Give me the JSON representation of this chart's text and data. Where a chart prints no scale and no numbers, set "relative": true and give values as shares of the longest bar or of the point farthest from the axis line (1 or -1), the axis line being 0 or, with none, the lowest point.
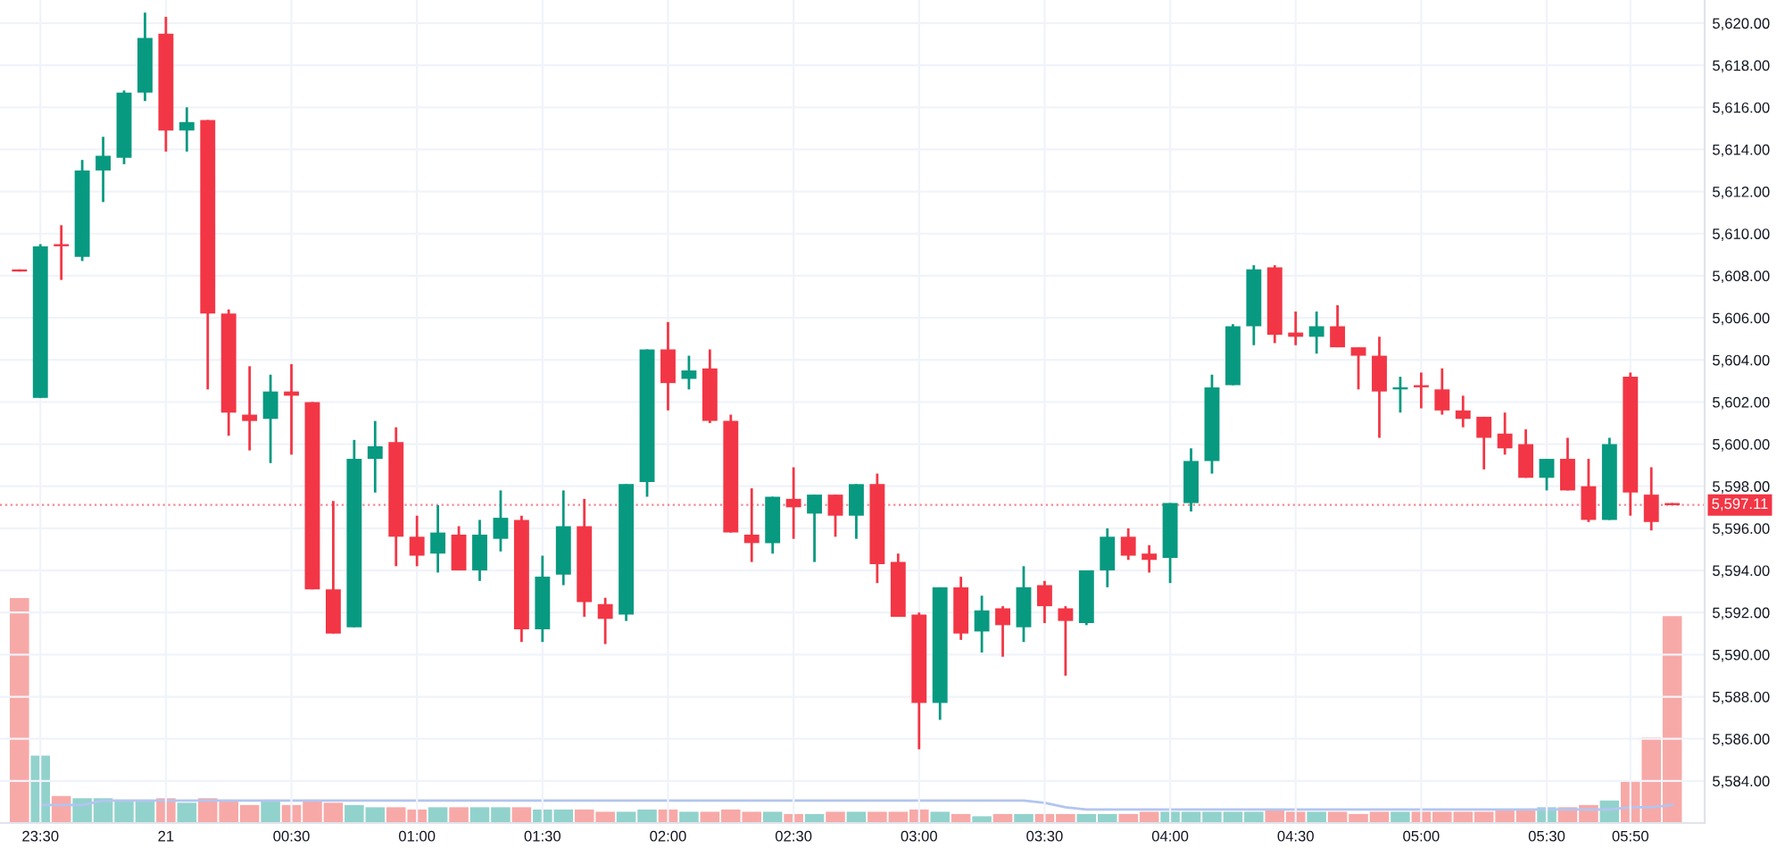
{
  "chart_data": [
    {
      "type": "candlestick",
      "categories": [
        null,
        "23:30",
        null,
        null,
        null,
        null,
        null,
        "21",
        null,
        null,
        null,
        null,
        null,
        "00:30",
        null,
        null,
        null,
        null,
        null,
        "01:00",
        null,
        null,
        null,
        null,
        null,
        "01:30",
        null,
        null,
        null,
        null,
        null,
        "02:00",
        null,
        null,
        null,
        null,
        null,
        "02:30",
        null,
        null,
        null,
        null,
        null,
        "03:00",
        null,
        null,
        null,
        null,
        null,
        "03:30",
        null,
        null,
        null,
        null,
        null,
        "04:00",
        null,
        null,
        null,
        null,
        null,
        "04:30",
        null,
        null,
        null,
        null,
        null,
        "05:00",
        null,
        null,
        null,
        null,
        null,
        "05:30",
        null,
        null,
        null,
        "05:50",
        null,
        null
      ],
      "ohlc": [
        [
          5608.3,
          5608.3,
          5608.2,
          5608.2
        ],
        [
          5602.2,
          5609.5,
          5602.2,
          5609.4
        ],
        [
          5609.5,
          5610.4,
          5607.8,
          5609.4
        ],
        [
          5608.9,
          5613.5,
          5608.7,
          5613.0
        ],
        [
          5613.0,
          5614.6,
          5611.5,
          5613.7
        ],
        [
          5613.6,
          5616.8,
          5613.3,
          5616.7
        ],
        [
          5616.7,
          5620.5,
          5616.3,
          5619.3
        ],
        [
          5619.5,
          5620.3,
          5613.9,
          5614.9
        ],
        [
          5614.9,
          5616.0,
          5613.9,
          5615.3
        ],
        [
          5615.4,
          5615.4,
          5602.6,
          5606.2
        ],
        [
          5606.2,
          5606.4,
          5600.4,
          5601.5
        ],
        [
          5601.4,
          5603.7,
          5599.7,
          5601.1
        ],
        [
          5601.2,
          5603.3,
          5599.1,
          5602.5
        ],
        [
          5602.5,
          5603.8,
          5599.5,
          5602.3
        ],
        [
          5602.0,
          5602.0,
          5593.1,
          5593.1
        ],
        [
          5593.1,
          5597.3,
          5591.0,
          5591.0
        ],
        [
          5591.3,
          5600.2,
          5591.3,
          5599.3
        ],
        [
          5599.3,
          5601.1,
          5597.7,
          5599.9
        ],
        [
          5600.1,
          5600.8,
          5594.2,
          5595.6
        ],
        [
          5595.6,
          5596.6,
          5594.2,
          5594.7
        ],
        [
          5594.8,
          5597.1,
          5593.9,
          5595.8
        ],
        [
          5595.7,
          5596.1,
          5594.0,
          5594.0
        ],
        [
          5594.0,
          5596.4,
          5593.5,
          5595.7
        ],
        [
          5595.5,
          5597.8,
          5594.9,
          5596.5
        ],
        [
          5596.4,
          5596.6,
          5590.6,
          5591.2
        ],
        [
          5591.2,
          5594.7,
          5590.6,
          5593.7
        ],
        [
          5593.8,
          5597.8,
          5593.3,
          5596.1
        ],
        [
          5596.1,
          5597.4,
          5591.8,
          5592.5
        ],
        [
          5592.4,
          5592.7,
          5590.5,
          5591.7
        ],
        [
          5591.9,
          5598.1,
          5591.6,
          5598.1
        ],
        [
          5598.2,
          5604.5,
          5597.5,
          5604.5
        ],
        [
          5604.5,
          5605.8,
          5601.6,
          5602.9
        ],
        [
          5603.1,
          5604.2,
          5602.6,
          5603.5
        ],
        [
          5603.6,
          5604.5,
          5601.0,
          5601.1
        ],
        [
          5601.1,
          5601.4,
          5595.8,
          5595.8
        ],
        [
          5595.7,
          5597.9,
          5594.4,
          5595.3
        ],
        [
          5595.3,
          5597.5,
          5594.8,
          5597.5
        ],
        [
          5597.4,
          5598.9,
          5595.5,
          5597.0
        ],
        [
          5596.7,
          5597.6,
          5594.4,
          5597.6
        ],
        [
          5597.6,
          5597.6,
          5595.6,
          5596.6
        ],
        [
          5596.6,
          5598.1,
          5595.5,
          5598.1
        ],
        [
          5598.1,
          5598.6,
          5593.4,
          5594.3
        ],
        [
          5594.4,
          5594.8,
          5591.8,
          5591.8
        ],
        [
          5591.9,
          5592.0,
          5585.5,
          5587.7
        ],
        [
          5587.7,
          5593.2,
          5586.9,
          5593.2
        ],
        [
          5593.2,
          5593.7,
          5590.7,
          5591.0
        ],
        [
          5591.1,
          5592.8,
          5590.1,
          5592.1
        ],
        [
          5592.2,
          5592.3,
          5589.9,
          5591.4
        ],
        [
          5591.3,
          5594.2,
          5590.6,
          5593.2
        ],
        [
          5593.3,
          5593.5,
          5591.5,
          5592.3
        ],
        [
          5592.2,
          5592.3,
          5589.0,
          5591.6
        ],
        [
          5591.5,
          5594.0,
          5591.4,
          5594.0
        ],
        [
          5594.0,
          5596.0,
          5593.2,
          5595.6
        ],
        [
          5595.6,
          5596.0,
          5594.5,
          5594.7
        ],
        [
          5594.8,
          5595.2,
          5593.9,
          5594.5
        ],
        [
          5594.6,
          5597.2,
          5593.4,
          5597.2
        ],
        [
          5597.2,
          5599.8,
          5596.8,
          5599.2
        ],
        [
          5599.2,
          5603.3,
          5598.6,
          5602.7
        ],
        [
          5602.8,
          5605.7,
          5602.8,
          5605.6
        ],
        [
          5605.6,
          5608.5,
          5604.7,
          5608.3
        ],
        [
          5608.4,
          5608.5,
          5604.8,
          5605.2
        ],
        [
          5605.3,
          5606.3,
          5604.7,
          5605.1
        ],
        [
          5605.1,
          5606.3,
          5604.3,
          5605.6
        ],
        [
          5605.6,
          5606.6,
          5604.6,
          5604.6
        ],
        [
          5604.6,
          5604.6,
          5602.6,
          5604.2
        ],
        [
          5604.2,
          5605.1,
          5600.3,
          5602.5
        ],
        [
          5602.6,
          5603.2,
          5601.5,
          5602.7
        ],
        [
          5602.8,
          5603.4,
          5601.7,
          5602.7
        ],
        [
          5602.6,
          5603.6,
          5601.4,
          5601.6
        ],
        [
          5601.6,
          5602.3,
          5600.8,
          5601.2
        ],
        [
          5601.3,
          5601.3,
          5598.8,
          5600.3
        ],
        [
          5600.5,
          5601.5,
          5599.5,
          5599.8
        ],
        [
          5600.0,
          5600.7,
          5598.4,
          5598.4
        ],
        [
          5598.4,
          5599.3,
          5597.8,
          5599.3
        ],
        [
          5599.3,
          5600.3,
          5597.8,
          5597.8
        ],
        [
          5598.0,
          5599.3,
          5596.3,
          5596.4
        ],
        [
          5596.4,
          5600.3,
          5596.4,
          5600.0
        ],
        [
          5603.2,
          5603.4,
          5596.6,
          5597.7
        ],
        [
          5597.6,
          5598.9,
          5595.9,
          5596.3
        ],
        [
          5597.2,
          5597.2,
          5597.1,
          5597.1
        ]
      ],
      "colors": [
        "#f23645",
        "#089981",
        "#f23645",
        "#089981",
        "#089981",
        "#089981",
        "#089981",
        "#f23645",
        "#089981",
        "#f23645",
        "#f23645",
        "#f23645",
        "#089981",
        "#f23645",
        "#f23645",
        "#f23645",
        "#089981",
        "#089981",
        "#f23645",
        "#f23645",
        "#089981",
        "#f23645",
        "#089981",
        "#089981",
        "#f23645",
        "#089981",
        "#089981",
        "#f23645",
        "#f23645",
        "#089981",
        "#089981",
        "#f23645",
        "#089981",
        "#f23645",
        "#f23645",
        "#f23645",
        "#089981",
        "#f23645",
        "#089981",
        "#f23645",
        "#089981",
        "#f23645",
        "#f23645",
        "#f23645",
        "#089981",
        "#f23645",
        "#089981",
        "#f23645",
        "#089981",
        "#f23645",
        "#f23645",
        "#089981",
        "#089981",
        "#f23645",
        "#f23645",
        "#089981",
        "#089981",
        "#089981",
        "#089981",
        "#089981",
        "#f23645",
        "#f23645",
        "#089981",
        "#f23645",
        "#f23645",
        "#f23645",
        "#089981",
        "#f23645",
        "#f23645",
        "#f23645",
        "#f23645",
        "#f23645",
        "#f23645",
        "#089981",
        "#f23645",
        "#f23645",
        "#089981",
        "#f23645",
        "#f23645",
        "#f23645"
      ],
      "ylim": [
        5582,
        5621.1
      ],
      "yticks": [
        {
          "value": 5584,
          "label": "5,584.00"
        },
        {
          "value": 5586,
          "label": "5,586.00"
        },
        {
          "value": 5588,
          "label": "5,588.00"
        },
        {
          "value": 5590,
          "label": "5,590.00"
        },
        {
          "value": 5592,
          "label": "5,592.00"
        },
        {
          "value": 5594,
          "label": "5,594.00"
        },
        {
          "value": 5596,
          "label": "5,596.00"
        },
        {
          "value": 5598,
          "label": "5,598.00"
        },
        {
          "value": 5600,
          "label": "5,600.00"
        },
        {
          "value": 5602,
          "label": "5,602.00"
        },
        {
          "value": 5604,
          "label": "5,604.00"
        },
        {
          "value": 5606,
          "label": "5,606.00"
        },
        {
          "value": 5608,
          "label": "5,608.00"
        },
        {
          "value": 5610,
          "label": "5,610.00"
        },
        {
          "value": 5612,
          "label": "5,612.00"
        },
        {
          "value": 5614,
          "label": "5,614.00"
        },
        {
          "value": 5616,
          "label": "5,616.00"
        },
        {
          "value": 5618,
          "label": "5,618.00"
        },
        {
          "value": 5620,
          "label": "5,620.00"
        }
      ],
      "grid": true,
      "ref_lines": [
        {
          "axis": "y",
          "value": 5597.11,
          "label": "5,597.11",
          "color": "#f23645",
          "line_style": "dotted"
        }
      ]
    },
    {
      "type": "bar",
      "relative": true,
      "categories": [
        null,
        null,
        null,
        null,
        null,
        null,
        null,
        null,
        null,
        null,
        null,
        null,
        null,
        null,
        null,
        null,
        null,
        null,
        null,
        null,
        null,
        null,
        null,
        null,
        null,
        null,
        null,
        null,
        null,
        null,
        null,
        null,
        null,
        null,
        null,
        null,
        null,
        null,
        null,
        null,
        null,
        null,
        null,
        null,
        null,
        null,
        null,
        null,
        null,
        null,
        null,
        null,
        null,
        null,
        null,
        null,
        null,
        null,
        null,
        null,
        null,
        null,
        null,
        null,
        null,
        null,
        null,
        null,
        null,
        null,
        null,
        null,
        null,
        null,
        null,
        null,
        null,
        null,
        null,
        null
      ],
      "series": [
        {
          "type": "bar",
          "values": [
            1,
            0.3,
            0.12,
            0.11,
            0.11,
            0.1,
            0.1,
            0.11,
            0.09,
            0.11,
            0.1,
            0.08,
            0.1,
            0.08,
            0.1,
            0.09,
            0.08,
            0.07,
            0.07,
            0.06,
            0.07,
            0.07,
            0.07,
            0.07,
            0.07,
            0.06,
            0.06,
            0.06,
            0.05,
            0.05,
            0.06,
            0.06,
            0.05,
            0.05,
            0.06,
            0.05,
            0.05,
            0.04,
            0.04,
            0.05,
            0.05,
            0.05,
            0.05,
            0.06,
            0.05,
            0.04,
            0.03,
            0.04,
            0.04,
            0.04,
            0.04,
            0.04,
            0.04,
            0.04,
            0.05,
            0.05,
            0.05,
            0.05,
            0.05,
            0.05,
            0.06,
            0.05,
            0.05,
            0.05,
            0.04,
            0.05,
            0.05,
            0.05,
            0.05,
            0.05,
            0.05,
            0.06,
            0.06,
            0.07,
            0.07,
            0.08,
            0.1,
            0.19,
            0.38,
            0.92
          ],
          "colors": [
            "#f7a9a7",
            "#92d2cc",
            "#f7a9a7",
            "#92d2cc",
            "#92d2cc",
            "#92d2cc",
            "#92d2cc",
            "#f7a9a7",
            "#92d2cc",
            "#f7a9a7",
            "#f7a9a7",
            "#f7a9a7",
            "#92d2cc",
            "#f7a9a7",
            "#f7a9a7",
            "#f7a9a7",
            "#92d2cc",
            "#92d2cc",
            "#f7a9a7",
            "#f7a9a7",
            "#92d2cc",
            "#f7a9a7",
            "#92d2cc",
            "#92d2cc",
            "#f7a9a7",
            "#92d2cc",
            "#92d2cc",
            "#f7a9a7",
            "#f7a9a7",
            "#92d2cc",
            "#92d2cc",
            "#f7a9a7",
            "#92d2cc",
            "#f7a9a7",
            "#f7a9a7",
            "#f7a9a7",
            "#92d2cc",
            "#f7a9a7",
            "#92d2cc",
            "#f7a9a7",
            "#92d2cc",
            "#f7a9a7",
            "#f7a9a7",
            "#f7a9a7",
            "#92d2cc",
            "#f7a9a7",
            "#92d2cc",
            "#f7a9a7",
            "#92d2cc",
            "#f7a9a7",
            "#f7a9a7",
            "#92d2cc",
            "#92d2cc",
            "#f7a9a7",
            "#f7a9a7",
            "#92d2cc",
            "#92d2cc",
            "#92d2cc",
            "#92d2cc",
            "#92d2cc",
            "#f7a9a7",
            "#f7a9a7",
            "#92d2cc",
            "#f7a9a7",
            "#f7a9a7",
            "#f7a9a7",
            "#92d2cc",
            "#f7a9a7",
            "#f7a9a7",
            "#f7a9a7",
            "#f7a9a7",
            "#f7a9a7",
            "#f7a9a7",
            "#92d2cc",
            "#f7a9a7",
            "#f7a9a7",
            "#92d2cc",
            "#f7a9a7",
            "#f7a9a7",
            "#f7a9a7"
          ]
        },
        {
          "type": "line",
          "color": "#b2c5f0",
          "values": [
            null,
            0.08,
            0.08,
            0.08,
            0.1,
            0.1,
            0.1,
            0.1,
            0.1,
            0.1,
            0.1,
            0.1,
            0.1,
            0.1,
            0.1,
            0.1,
            0.1,
            0.1,
            0.1,
            0.1,
            0.1,
            0.1,
            0.1,
            0.1,
            0.1,
            0.1,
            0.1,
            0.1,
            0.1,
            0.1,
            0.1,
            0.1,
            0.1,
            0.1,
            0.1,
            0.1,
            0.1,
            0.1,
            0.1,
            0.1,
            0.1,
            0.1,
            0.1,
            0.1,
            0.1,
            0.1,
            0.1,
            0.1,
            0.1,
            0.09,
            0.07,
            0.06,
            0.06,
            0.06,
            0.06,
            0.06,
            0.06,
            0.06,
            0.06,
            0.06,
            0.06,
            0.06,
            0.06,
            0.06,
            0.06,
            0.06,
            0.06,
            0.06,
            0.06,
            0.06,
            0.06,
            0.06,
            0.06,
            0.06,
            0.06,
            0.06,
            0.06,
            0.07,
            0.07,
            0.08
          ]
        }
      ]
    }
  ]
}
